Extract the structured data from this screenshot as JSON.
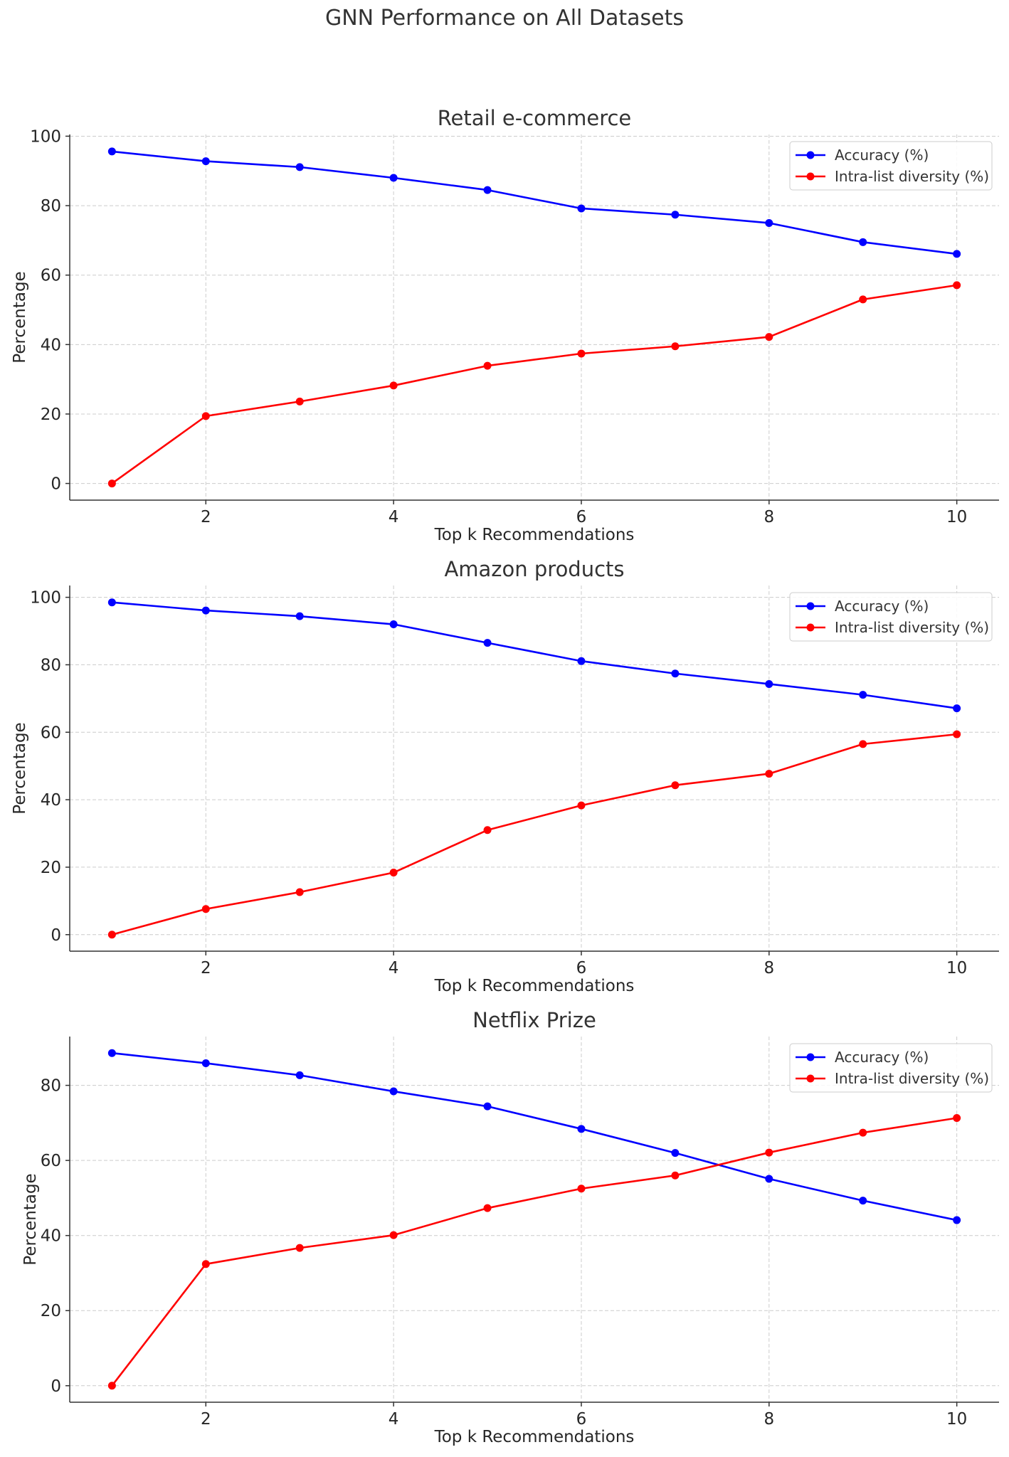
{
  "title": "GNN Performance on All Datasets",
  "colors": {
    "accuracy": "#0000ff",
    "diversity": "#ff0000",
    "grid": "#cccccc",
    "axis": "#333333"
  },
  "chart_data": [
    {
      "type": "line",
      "title": "Retail e-commerce",
      "xlabel": "Top k Recommendations",
      "ylabel": "Percentage",
      "x": [
        1,
        2,
        3,
        4,
        5,
        6,
        7,
        8,
        9,
        10
      ],
      "xticks": [
        2,
        4,
        6,
        8,
        10
      ],
      "yticks": [
        0,
        20,
        40,
        60,
        80,
        100
      ],
      "xlim": [
        0.55,
        10.45
      ],
      "ylim": [
        -4.8,
        100.5
      ],
      "grid": true,
      "legend": "top-right",
      "series": [
        {
          "name": "Accuracy (%)",
          "color": "#0000ff",
          "values": [
            95.6,
            92.8,
            91.1,
            88.0,
            84.5,
            79.2,
            77.4,
            75.0,
            69.5,
            66.1
          ]
        },
        {
          "name": "Intra-list diversity (%)",
          "color": "#ff0000",
          "values": [
            0.0,
            19.4,
            23.6,
            28.2,
            33.9,
            37.4,
            39.5,
            42.2,
            53.0,
            57.1
          ]
        }
      ]
    },
    {
      "type": "line",
      "title": "Amazon products",
      "xlabel": "Top k Recommendations",
      "ylabel": "Percentage",
      "x": [
        1,
        2,
        3,
        4,
        5,
        6,
        7,
        8,
        9,
        10
      ],
      "xticks": [
        2,
        4,
        6,
        8,
        10
      ],
      "yticks": [
        0,
        20,
        40,
        60,
        80,
        100
      ],
      "xlim": [
        0.55,
        10.45
      ],
      "ylim": [
        -4.9,
        103.5
      ],
      "grid": true,
      "legend": "top-right",
      "series": [
        {
          "name": "Accuracy (%)",
          "color": "#0000ff",
          "values": [
            98.5,
            96.1,
            94.4,
            92.0,
            86.5,
            81.1,
            77.4,
            74.3,
            71.1,
            67.1
          ]
        },
        {
          "name": "Intra-list diversity (%)",
          "color": "#ff0000",
          "values": [
            0.0,
            7.6,
            12.6,
            18.4,
            31.0,
            38.3,
            44.3,
            47.7,
            56.5,
            59.4
          ]
        }
      ]
    },
    {
      "type": "line",
      "title": "Netflix Prize",
      "xlabel": "Top k Recommendations",
      "ylabel": "Percentage",
      "x": [
        1,
        2,
        3,
        4,
        5,
        6,
        7,
        8,
        9,
        10
      ],
      "xticks": [
        2,
        4,
        6,
        8,
        10
      ],
      "yticks": [
        0,
        20,
        40,
        60,
        80
      ],
      "xlim": [
        0.55,
        10.45
      ],
      "ylim": [
        -4.4,
        93.0
      ],
      "grid": true,
      "legend": "top-right",
      "series": [
        {
          "name": "Accuracy (%)",
          "color": "#0000ff",
          "values": [
            88.6,
            85.9,
            82.7,
            78.4,
            74.4,
            68.4,
            62.0,
            55.1,
            49.3,
            44.1
          ]
        },
        {
          "name": "Intra-list diversity (%)",
          "color": "#ff0000",
          "values": [
            0.0,
            32.4,
            36.7,
            40.1,
            47.3,
            52.5,
            56.0,
            62.1,
            67.4,
            71.3
          ]
        }
      ]
    }
  ]
}
